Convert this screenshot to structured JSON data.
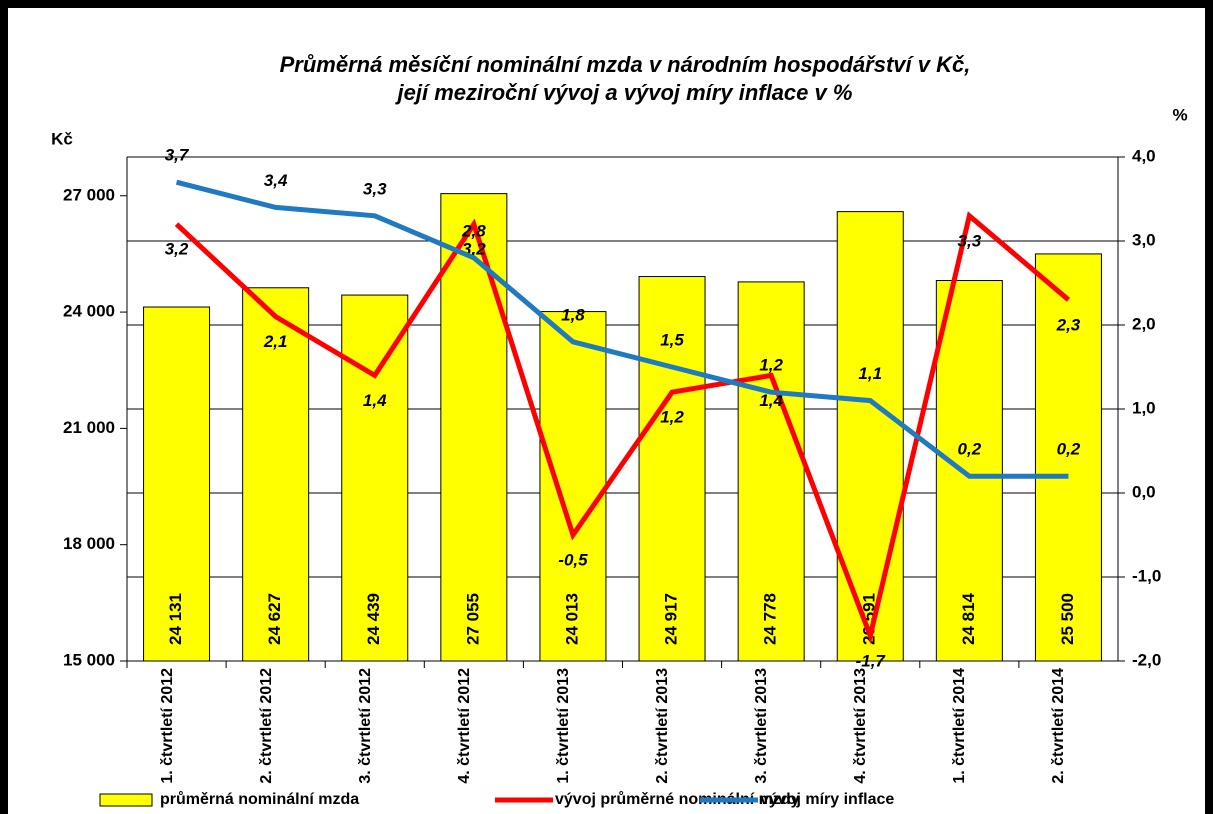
{
  "chart_data": {
    "type": "bar-line",
    "title": "Průměrná měsíční nominální mzda v národním hospodářství v Kč,",
    "subtitle": "její meziroční vývoj a vývoj míry inflace v %",
    "ylabel": "Kč",
    "y2label": "%",
    "categories": [
      "1. čtvrtletí 2012",
      "2. čtvrtletí 2012",
      "3. čtvrtletí 2012",
      "4. čtvrtletí 2012",
      "1. čtvrtletí 2013",
      "2. čtvrtletí 2013",
      "3. čtvrtletí 2013",
      "4. čtvrtletí 2013",
      "1. čtvrtletí 2014",
      "2. čtvrtletí 2014"
    ],
    "series": [
      {
        "name": "průměrná nominální mzda",
        "type": "bar",
        "color": "#ffff00",
        "axis": "y",
        "values": [
          24131,
          24627,
          24439,
          27055,
          24013,
          24917,
          24778,
          26591,
          24814,
          25500
        ],
        "value_labels": [
          "24 131",
          "24 627",
          "24 439",
          "27 055",
          "24 013",
          "24 917",
          "24 778",
          "26 591",
          "24 814",
          "25 500"
        ]
      },
      {
        "name": "vývoj průměrné nominální mzdy",
        "type": "line",
        "color": "#ff0000",
        "axis": "y2",
        "values": [
          3.2,
          2.1,
          1.4,
          3.2,
          -0.5,
          1.2,
          1.4,
          -1.7,
          3.3,
          2.3
        ],
        "value_labels": [
          "3,2",
          "2,1",
          "1,4",
          "3,2",
          "-0,5",
          "1,2",
          "1,4",
          "-1,7",
          "3,3",
          "2,3"
        ]
      },
      {
        "name": "vývoj míry inflace",
        "type": "line",
        "color": "#1f7ac2",
        "axis": "y2",
        "values": [
          3.7,
          3.4,
          3.3,
          2.8,
          1.8,
          1.5,
          1.2,
          1.1,
          0.2,
          0.2
        ],
        "value_labels": [
          "3,7",
          "3,4",
          "3,3",
          "2,8",
          "1,8",
          "1,5",
          "1,2",
          "1,1",
          "0,2",
          "0,2"
        ]
      }
    ],
    "ylim": [
      15000,
      28000
    ],
    "yticks": [
      {
        "value": 15000,
        "label": "15 000"
      },
      {
        "value": 18000,
        "label": "18 000"
      },
      {
        "value": 21000,
        "label": "21 000"
      },
      {
        "value": 24000,
        "label": "24 000"
      },
      {
        "value": 27000,
        "label": "27 000"
      }
    ],
    "y2lim": [
      -2,
      4
    ],
    "y2ticks": [
      {
        "value": -2,
        "label": "-2,0"
      },
      {
        "value": -1,
        "label": "-1,0"
      },
      {
        "value": 0,
        "label": "0,0"
      },
      {
        "value": 1,
        "label": "1,0"
      },
      {
        "value": 2,
        "label": "2,0"
      },
      {
        "value": 3,
        "label": "3,0"
      },
      {
        "value": 4,
        "label": "4,0"
      }
    ],
    "grid": true,
    "legend": "bottom"
  }
}
